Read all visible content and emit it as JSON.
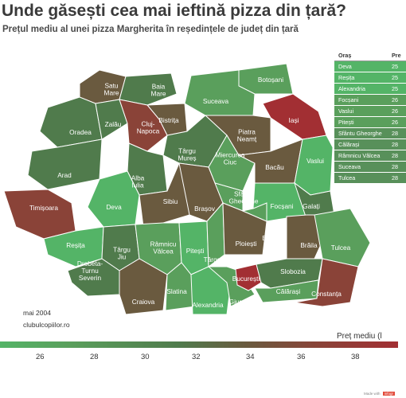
{
  "title": "Unde găsești cea mai ieftină pizza din țară?",
  "subtitle": "Prețul mediu al unei pizza Margherita în reședințele de județ din țară",
  "source_date": "mai 2004",
  "source_site": "clubulcopiilor.ro",
  "legend_title": "Preț mediu (l",
  "scale_ticks": [
    "26",
    "28",
    "30",
    "32",
    "34",
    "36",
    "38"
  ],
  "colors": {
    "green_light": "#54b467",
    "green_mid": "#5a9f5c",
    "green_dark": "#507b4c",
    "brown": "#6a5a3f",
    "red_brown": "#8a4338",
    "red": "#a22f33"
  },
  "table": {
    "headers": [
      "Oraș",
      "Pre"
    ],
    "rows": [
      {
        "city": "Deva",
        "price": "25",
        "color": "#54b467"
      },
      {
        "city": "Reșița",
        "price": "25",
        "color": "#54b467"
      },
      {
        "city": "Alexandria",
        "price": "25",
        "color": "#54b467"
      },
      {
        "city": "Focșani",
        "price": "26",
        "color": "#5a9f5c"
      },
      {
        "city": "Vaslui",
        "price": "26",
        "color": "#5a9f5c"
      },
      {
        "city": "Pitești",
        "price": "26",
        "color": "#5a9f5c"
      },
      {
        "city": "Sfântu Gheorghe",
        "price": "28",
        "color": "#58905a"
      },
      {
        "city": "Călărași",
        "price": "28",
        "color": "#58905a"
      },
      {
        "city": "Râmnicu Vâlcea",
        "price": "28",
        "color": "#58905a"
      },
      {
        "city": "Suceava",
        "price": "28",
        "color": "#58905a"
      },
      {
        "city": "Tulcea",
        "price": "28",
        "color": "#58905a"
      }
    ]
  },
  "regions": [
    {
      "label": "Satu\nMare",
      "tone": "brown"
    },
    {
      "label": "Baia\nMare",
      "tone": "green_dark"
    },
    {
      "label": "Botoșani",
      "tone": "green_mid"
    },
    {
      "label": "Suceava",
      "tone": "green_mid"
    },
    {
      "label": "Iași",
      "tone": "red"
    },
    {
      "label": "Oradea",
      "tone": "green_dark"
    },
    {
      "label": "Zalău",
      "tone": "green_dark"
    },
    {
      "label": "Bistrița",
      "tone": "brown"
    },
    {
      "label": "Cluj-\nNapoca",
      "tone": "red_brown"
    },
    {
      "label": "Piatra\nNeamț",
      "tone": "brown"
    },
    {
      "label": "Târgu\nMureș",
      "tone": "green_dark"
    },
    {
      "label": "Miercurea\nCiuc",
      "tone": "green_mid"
    },
    {
      "label": "Bacău",
      "tone": "brown"
    },
    {
      "label": "Vaslui",
      "tone": "green_light"
    },
    {
      "label": "Arad",
      "tone": "green_dark"
    },
    {
      "label": "Alba\nIulia",
      "tone": "green_dark"
    },
    {
      "label": "Timișoara",
      "tone": "red_brown"
    },
    {
      "label": "Deva",
      "tone": "green_light"
    },
    {
      "label": "Sibiu",
      "tone": "brown"
    },
    {
      "label": "Brașov",
      "tone": "brown"
    },
    {
      "label": "Sfântu\nGheorghe",
      "tone": "green_mid"
    },
    {
      "label": "Focșani",
      "tone": "green_light"
    },
    {
      "label": "Galați",
      "tone": "green_dark"
    },
    {
      "label": "Reșița",
      "tone": "green_light"
    },
    {
      "label": "Târgu\nJiu",
      "tone": "green_dark"
    },
    {
      "label": "Râmnicu\nVâlcea",
      "tone": "green_mid"
    },
    {
      "label": "Pitești",
      "tone": "green_light"
    },
    {
      "label": "Târgoviște",
      "tone": "green_mid"
    },
    {
      "label": "Ploiești",
      "tone": "brown"
    },
    {
      "label": "Buzău",
      "tone": "green_mid"
    },
    {
      "label": "Brăila",
      "tone": "brown"
    },
    {
      "label": "Tulcea",
      "tone": "green_mid"
    },
    {
      "label": "Drobeta-\nTurnu\nSeverin",
      "tone": "green_dark"
    },
    {
      "label": "Craiova",
      "tone": "brown"
    },
    {
      "label": "Slatina",
      "tone": "green_mid"
    },
    {
      "label": "Alexandria",
      "tone": "green_light"
    },
    {
      "label": "Giurgiu",
      "tone": "green_mid"
    },
    {
      "label": "București",
      "tone": "red"
    },
    {
      "label": "Slobozia",
      "tone": "green_dark"
    },
    {
      "label": "Călărași",
      "tone": "green_mid"
    },
    {
      "label": "Constanța",
      "tone": "red_brown"
    }
  ],
  "footer_text": "Made with",
  "footer_brand": "infogr"
}
